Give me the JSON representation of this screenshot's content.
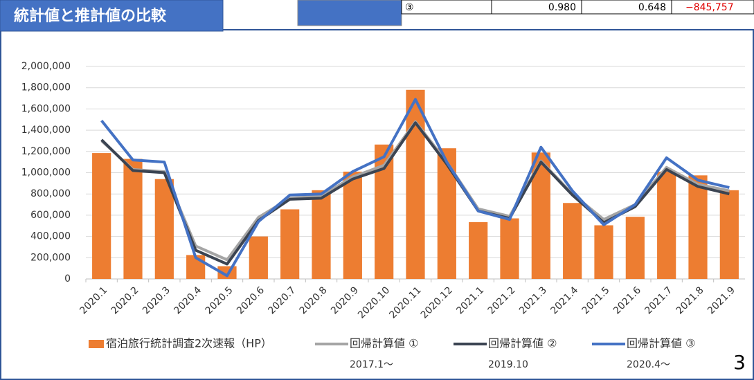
{
  "header": {
    "title": "統計値と推計値の比較"
  },
  "table_fragment": {
    "cells": [
      "③",
      "0.980",
      "0.648",
      "−845,757"
    ]
  },
  "chart_data": {
    "type": "combo",
    "categories": [
      "2020.1",
      "2020.2",
      "2020.3",
      "2020.4",
      "2020.5",
      "2020.6",
      "2020.7",
      "2020.8",
      "2020.9",
      "2020.10",
      "2020.11",
      "2020.12",
      "2021.1",
      "2021.2",
      "2021.3",
      "2021.4",
      "2021.5",
      "2021.6",
      "2021.7",
      "2021.8",
      "2021.9"
    ],
    "series": [
      {
        "name": "宿泊旅行統計調査2次速報（HP）",
        "type": "bar",
        "color": "#ed7d31",
        "values": [
          1185000,
          1130000,
          940000,
          225000,
          120000,
          400000,
          655000,
          835000,
          1010000,
          1265000,
          1780000,
          1230000,
          535000,
          570000,
          1190000,
          715000,
          505000,
          585000,
          1010000,
          975000,
          835000
        ]
      },
      {
        "name": "回帰計算値 ①",
        "note": "2017.1〜",
        "type": "line",
        "color": "#a5a5a5",
        "values": [
          1300000,
          1030000,
          1010000,
          310000,
          180000,
          580000,
          760000,
          780000,
          960000,
          1070000,
          1480000,
          1100000,
          660000,
          590000,
          1110000,
          800000,
          560000,
          700000,
          1050000,
          890000,
          830000
        ]
      },
      {
        "name": "回帰計算値 ②",
        "note": "2019.10",
        "type": "line",
        "color": "#3b4452",
        "values": [
          1310000,
          1020000,
          1000000,
          270000,
          140000,
          550000,
          750000,
          760000,
          940000,
          1040000,
          1470000,
          1080000,
          640000,
          570000,
          1100000,
          790000,
          530000,
          680000,
          1030000,
          870000,
          800000
        ]
      },
      {
        "name": "回帰計算値 ③",
        "note": "2020.4〜",
        "type": "line",
        "color": "#4472c4",
        "values": [
          1490000,
          1120000,
          1100000,
          200000,
          30000,
          540000,
          790000,
          800000,
          1010000,
          1150000,
          1690000,
          1100000,
          640000,
          560000,
          1240000,
          830000,
          510000,
          700000,
          1140000,
          930000,
          860000
        ]
      }
    ],
    "ylim": [
      0,
      2000000
    ],
    "yticks": [
      0,
      {
        "value": 200000,
        "label": "200,000"
      },
      {
        "value": 400000,
        "label": "400,000"
      },
      {
        "value": 600000,
        "label": "600,000"
      },
      {
        "value": 800000,
        "label": "800,000"
      },
      {
        "value": 1000000,
        "label": "1,000,000"
      },
      {
        "value": 1200000,
        "label": "1,200,000"
      },
      {
        "value": 1400000,
        "label": "1,400,000"
      },
      {
        "value": 1600000,
        "label": "1,600,000"
      },
      {
        "value": 1800000,
        "label": "1,800,000"
      },
      {
        "value": 2000000,
        "label": "2,000,000"
      }
    ],
    "grid": true
  },
  "page_number": "3"
}
